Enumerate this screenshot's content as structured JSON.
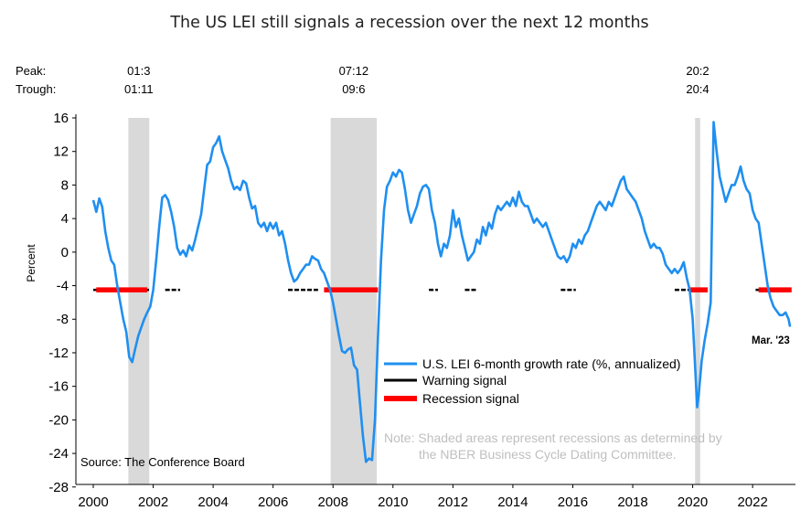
{
  "chart_data": {
    "type": "line",
    "title": "The US LEI still signals a recession over the next 12 months",
    "ylabel": "Percent",
    "xlabel": "",
    "ylim": [
      -28,
      16
    ],
    "yticks": [
      "16",
      "12",
      "8",
      "4",
      "0",
      "-4",
      "-8",
      "-12",
      "-16",
      "-20",
      "-24",
      "-28"
    ],
    "xlim": [
      2000,
      2023.4
    ],
    "xticks": [
      "2000",
      "2002",
      "2004",
      "2006",
      "2008",
      "2010",
      "2012",
      "2014",
      "2016",
      "2018",
      "2020",
      "2022"
    ],
    "grid": false,
    "legend_position": "lower-right",
    "row_labels": {
      "peak": "Peak:",
      "trough": "Trough:"
    },
    "recessions": [
      {
        "peak": "01:3",
        "trough": "01:11",
        "start": 2001.17,
        "end": 2001.87
      },
      {
        "peak": "07:12",
        "trough": "09:6",
        "start": 2007.92,
        "end": 2009.46
      },
      {
        "peak": "20:2",
        "trough": "20:4",
        "start": 2020.08,
        "end": 2020.25
      }
    ],
    "series": [
      {
        "name": "U.S. LEI 6-month growth rate (%, annualized)",
        "color": "#1f8ff0",
        "points": [
          [
            2000.0,
            6.2
          ],
          [
            2000.1,
            4.8
          ],
          [
            2000.2,
            6.4
          ],
          [
            2000.3,
            5.4
          ],
          [
            2000.4,
            2.5
          ],
          [
            2000.5,
            0.5
          ],
          [
            2000.6,
            -1.0
          ],
          [
            2000.7,
            -1.5
          ],
          [
            2000.8,
            -4.0
          ],
          [
            2000.9,
            -6.0
          ],
          [
            2001.0,
            -8.0
          ],
          [
            2001.1,
            -9.5
          ],
          [
            2001.2,
            -12.5
          ],
          [
            2001.3,
            -13.1
          ],
          [
            2001.4,
            -11.5
          ],
          [
            2001.5,
            -10.0
          ],
          [
            2001.6,
            -9.0
          ],
          [
            2001.7,
            -8.0
          ],
          [
            2001.8,
            -7.2
          ],
          [
            2001.9,
            -6.5
          ],
          [
            2002.0,
            -4.5
          ],
          [
            2002.1,
            -1.0
          ],
          [
            2002.2,
            3.0
          ],
          [
            2002.3,
            6.5
          ],
          [
            2002.4,
            6.8
          ],
          [
            2002.5,
            6.2
          ],
          [
            2002.6,
            4.8
          ],
          [
            2002.7,
            3.0
          ],
          [
            2002.8,
            0.5
          ],
          [
            2002.9,
            -0.3
          ],
          [
            2003.0,
            0.2
          ],
          [
            2003.1,
            -0.5
          ],
          [
            2003.2,
            0.8
          ],
          [
            2003.3,
            0.2
          ],
          [
            2003.4,
            1.5
          ],
          [
            2003.5,
            3.0
          ],
          [
            2003.6,
            4.5
          ],
          [
            2003.7,
            7.5
          ],
          [
            2003.8,
            10.4
          ],
          [
            2003.9,
            10.8
          ],
          [
            2004.0,
            12.5
          ],
          [
            2004.1,
            13.0
          ],
          [
            2004.2,
            13.8
          ],
          [
            2004.3,
            12.0
          ],
          [
            2004.4,
            11.0
          ],
          [
            2004.5,
            10.0
          ],
          [
            2004.6,
            8.5
          ],
          [
            2004.7,
            7.5
          ],
          [
            2004.8,
            7.8
          ],
          [
            2004.9,
            7.4
          ],
          [
            2005.0,
            8.5
          ],
          [
            2005.1,
            8.2
          ],
          [
            2005.2,
            6.5
          ],
          [
            2005.3,
            5.2
          ],
          [
            2005.4,
            5.5
          ],
          [
            2005.5,
            3.5
          ],
          [
            2005.6,
            3.0
          ],
          [
            2005.7,
            3.5
          ],
          [
            2005.8,
            2.5
          ],
          [
            2005.9,
            3.5
          ],
          [
            2006.0,
            2.8
          ],
          [
            2006.1,
            3.5
          ],
          [
            2006.2,
            2.0
          ],
          [
            2006.3,
            2.5
          ],
          [
            2006.4,
            1.0
          ],
          [
            2006.5,
            -1.0
          ],
          [
            2006.6,
            -2.5
          ],
          [
            2006.7,
            -3.5
          ],
          [
            2006.8,
            -3.2
          ],
          [
            2006.9,
            -2.5
          ],
          [
            2007.0,
            -2.0
          ],
          [
            2007.1,
            -1.5
          ],
          [
            2007.2,
            -1.5
          ],
          [
            2007.3,
            -0.5
          ],
          [
            2007.4,
            -0.8
          ],
          [
            2007.5,
            -1.0
          ],
          [
            2007.6,
            -2.0
          ],
          [
            2007.7,
            -2.5
          ],
          [
            2007.8,
            -3.5
          ],
          [
            2007.9,
            -4.5
          ],
          [
            2008.0,
            -6.0
          ],
          [
            2008.1,
            -8.0
          ],
          [
            2008.2,
            -10.0
          ],
          [
            2008.3,
            -11.8
          ],
          [
            2008.4,
            -12.0
          ],
          [
            2008.5,
            -11.6
          ],
          [
            2008.6,
            -11.4
          ],
          [
            2008.7,
            -13.5
          ],
          [
            2008.8,
            -14.0
          ],
          [
            2008.9,
            -18.0
          ],
          [
            2009.0,
            -22.0
          ],
          [
            2009.1,
            -25.0
          ],
          [
            2009.2,
            -24.6
          ],
          [
            2009.3,
            -24.8
          ],
          [
            2009.4,
            -20.0
          ],
          [
            2009.5,
            -10.0
          ],
          [
            2009.6,
            -1.0
          ],
          [
            2009.7,
            5.0
          ],
          [
            2009.8,
            7.8
          ],
          [
            2009.9,
            8.5
          ],
          [
            2010.0,
            9.5
          ],
          [
            2010.1,
            9.0
          ],
          [
            2010.2,
            9.8
          ],
          [
            2010.3,
            9.5
          ],
          [
            2010.4,
            7.5
          ],
          [
            2010.5,
            5.0
          ],
          [
            2010.6,
            3.5
          ],
          [
            2010.7,
            4.5
          ],
          [
            2010.8,
            5.5
          ],
          [
            2010.9,
            7.0
          ],
          [
            2011.0,
            7.8
          ],
          [
            2011.1,
            8.0
          ],
          [
            2011.2,
            7.5
          ],
          [
            2011.3,
            5.0
          ],
          [
            2011.4,
            3.5
          ],
          [
            2011.5,
            1.0
          ],
          [
            2011.6,
            -0.5
          ],
          [
            2011.7,
            1.0
          ],
          [
            2011.8,
            0.5
          ],
          [
            2011.9,
            2.0
          ],
          [
            2012.0,
            5.0
          ],
          [
            2012.1,
            3.0
          ],
          [
            2012.2,
            4.0
          ],
          [
            2012.3,
            2.0
          ],
          [
            2012.4,
            0.5
          ],
          [
            2012.5,
            -1.0
          ],
          [
            2012.6,
            -0.5
          ],
          [
            2012.7,
            0.0
          ],
          [
            2012.8,
            1.5
          ],
          [
            2012.9,
            1.0
          ],
          [
            2013.0,
            3.0
          ],
          [
            2013.1,
            2.0
          ],
          [
            2013.2,
            3.5
          ],
          [
            2013.3,
            2.8
          ],
          [
            2013.4,
            4.5
          ],
          [
            2013.5,
            5.5
          ],
          [
            2013.6,
            5.0
          ],
          [
            2013.7,
            5.5
          ],
          [
            2013.8,
            6.0
          ],
          [
            2013.9,
            5.5
          ],
          [
            2014.0,
            6.5
          ],
          [
            2014.1,
            5.5
          ],
          [
            2014.2,
            7.2
          ],
          [
            2014.3,
            6.0
          ],
          [
            2014.4,
            5.5
          ],
          [
            2014.5,
            5.5
          ],
          [
            2014.6,
            4.5
          ],
          [
            2014.7,
            3.5
          ],
          [
            2014.8,
            4.0
          ],
          [
            2014.9,
            3.5
          ],
          [
            2015.0,
            3.0
          ],
          [
            2015.1,
            3.5
          ],
          [
            2015.2,
            2.5
          ],
          [
            2015.3,
            1.5
          ],
          [
            2015.4,
            0.5
          ],
          [
            2015.5,
            -0.5
          ],
          [
            2015.6,
            -0.8
          ],
          [
            2015.7,
            -0.5
          ],
          [
            2015.8,
            -1.2
          ],
          [
            2015.9,
            -0.5
          ],
          [
            2016.0,
            1.0
          ],
          [
            2016.1,
            0.5
          ],
          [
            2016.2,
            1.5
          ],
          [
            2016.3,
            1.0
          ],
          [
            2016.4,
            2.0
          ],
          [
            2016.5,
            2.5
          ],
          [
            2016.6,
            3.5
          ],
          [
            2016.7,
            4.5
          ],
          [
            2016.8,
            5.5
          ],
          [
            2016.9,
            6.0
          ],
          [
            2017.0,
            5.5
          ],
          [
            2017.1,
            5.0
          ],
          [
            2017.2,
            6.0
          ],
          [
            2017.3,
            5.5
          ],
          [
            2017.4,
            6.5
          ],
          [
            2017.5,
            7.5
          ],
          [
            2017.6,
            8.5
          ],
          [
            2017.7,
            9.0
          ],
          [
            2017.8,
            7.5
          ],
          [
            2017.9,
            7.0
          ],
          [
            2018.0,
            6.5
          ],
          [
            2018.1,
            6.0
          ],
          [
            2018.2,
            5.0
          ],
          [
            2018.3,
            4.0
          ],
          [
            2018.4,
            2.5
          ],
          [
            2018.5,
            1.5
          ],
          [
            2018.6,
            0.5
          ],
          [
            2018.7,
            1.0
          ],
          [
            2018.8,
            0.5
          ],
          [
            2018.9,
            0.5
          ],
          [
            2019.0,
            -0.2
          ],
          [
            2019.1,
            -1.5
          ],
          [
            2019.2,
            -2.0
          ],
          [
            2019.3,
            -2.5
          ],
          [
            2019.4,
            -2.0
          ],
          [
            2019.5,
            -2.5
          ],
          [
            2019.6,
            -2.0
          ],
          [
            2019.7,
            -1.2
          ],
          [
            2019.8,
            -3.0
          ],
          [
            2019.9,
            -4.5
          ],
          [
            2020.0,
            -8.0
          ],
          [
            2020.1,
            -15.0
          ],
          [
            2020.15,
            -18.5
          ],
          [
            2020.2,
            -17.0
          ],
          [
            2020.3,
            -13.0
          ],
          [
            2020.4,
            -10.5
          ],
          [
            2020.5,
            -8.5
          ],
          [
            2020.6,
            -6.0
          ],
          [
            2020.65,
            5.0
          ],
          [
            2020.7,
            15.5
          ],
          [
            2020.8,
            12.0
          ],
          [
            2020.9,
            9.0
          ],
          [
            2021.0,
            7.5
          ],
          [
            2021.1,
            6.0
          ],
          [
            2021.2,
            7.0
          ],
          [
            2021.3,
            8.0
          ],
          [
            2021.4,
            8.0
          ],
          [
            2021.5,
            9.0
          ],
          [
            2021.6,
            10.2
          ],
          [
            2021.7,
            8.5
          ],
          [
            2021.8,
            7.5
          ],
          [
            2021.9,
            7.0
          ],
          [
            2022.0,
            5.0
          ],
          [
            2022.1,
            4.0
          ],
          [
            2022.2,
            3.5
          ],
          [
            2022.3,
            1.0
          ],
          [
            2022.4,
            -1.5
          ],
          [
            2022.5,
            -4.0
          ],
          [
            2022.6,
            -5.5
          ],
          [
            2022.7,
            -6.5
          ],
          [
            2022.8,
            -7.0
          ],
          [
            2022.9,
            -7.5
          ],
          [
            2023.0,
            -7.5
          ],
          [
            2023.1,
            -7.2
          ],
          [
            2023.2,
            -8.0
          ],
          [
            2023.25,
            -8.9
          ]
        ]
      },
      {
        "name": "Warning signal",
        "color": "#000000",
        "value": -4.5,
        "segments": [
          [
            2000.0,
            2001.9
          ],
          [
            2002.4,
            2002.9
          ],
          [
            2006.5,
            2007.5
          ],
          [
            2011.2,
            2011.5
          ],
          [
            2012.4,
            2012.8
          ],
          [
            2015.6,
            2016.1
          ],
          [
            2019.4,
            2020.0
          ],
          [
            2022.1,
            2022.5
          ]
        ]
      },
      {
        "name": "Recession signal",
        "color": "#ff0000",
        "value": -4.5,
        "segments": [
          [
            2000.1,
            2001.8
          ],
          [
            2007.7,
            2009.5
          ],
          [
            2019.9,
            2020.5
          ],
          [
            2022.2,
            2023.3
          ]
        ]
      }
    ],
    "annotations": {
      "last_point": "Mar. '23",
      "source": "Source: The Conference Board",
      "note_line1": "Note: Shaded areas represent recessions as determined by",
      "note_line2": "the NBER Business Cycle Dating Committee."
    }
  }
}
